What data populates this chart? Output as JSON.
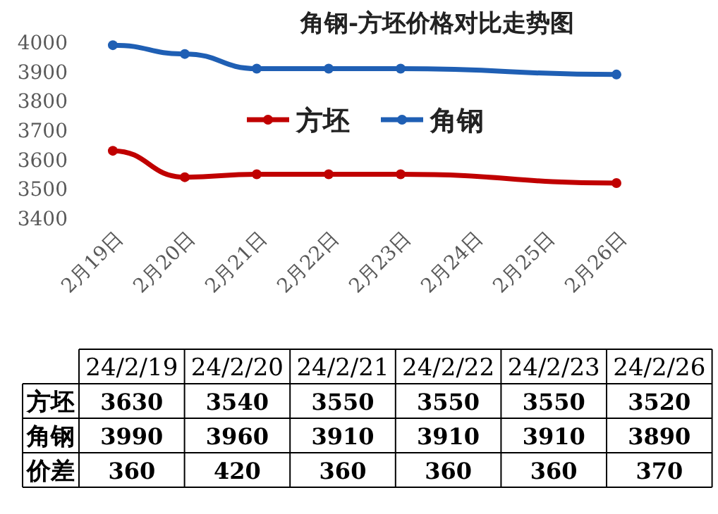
{
  "chart_data": [
    {
      "type": "line",
      "title": "角钢-方坯价格对比走势图",
      "categories": [
        "2月19日",
        "2月20日",
        "2月21日",
        "2月22日",
        "2月23日",
        "2月24日",
        "2月25日",
        "2月26日"
      ],
      "series": [
        {
          "name": "方坯",
          "color": "#c00000",
          "values": [
            3630,
            3540,
            3550,
            3550,
            3550,
            null,
            null,
            3520
          ]
        },
        {
          "name": "角钢",
          "color": "#1f5fb4",
          "values": [
            3990,
            3960,
            3910,
            3910,
            3910,
            null,
            null,
            3890
          ]
        }
      ],
      "ylim": [
        3400,
        4000
      ],
      "yticks": [
        3400,
        3500,
        3600,
        3700,
        3800,
        3900,
        4000
      ],
      "legend": "top",
      "marker": "circle",
      "grid": false
    },
    {
      "type": "other",
      "data_labels": true,
      "categories": [
        "24/2/19",
        "24/2/20",
        "24/2/21",
        "24/2/22",
        "24/2/23",
        "24/2/26"
      ],
      "series": [
        {
          "name": "方坯",
          "values": [
            3630,
            3540,
            3550,
            3550,
            3550,
            3520
          ]
        },
        {
          "name": "角钢",
          "values": [
            3990,
            3960,
            3910,
            3910,
            3910,
            3890
          ]
        },
        {
          "name": "价差",
          "values": [
            360,
            420,
            360,
            360,
            360,
            370
          ]
        }
      ]
    }
  ]
}
